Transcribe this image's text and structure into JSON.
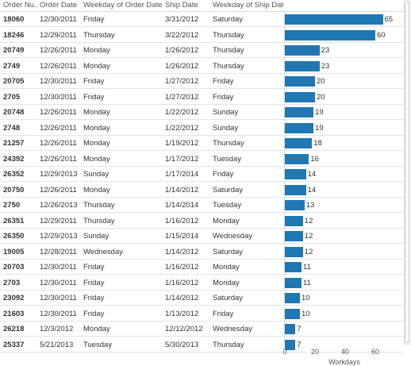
{
  "table": {
    "columns": [
      "Order Nu..",
      "Order Date",
      "Weekday of Order Date",
      "Ship Date",
      "Weekday of Ship Date"
    ]
  },
  "colors": {
    "bar": "#1f77b4"
  },
  "chart_data": {
    "type": "bar",
    "orientation": "horizontal",
    "xlabel": "Workdays",
    "xlim": [
      0,
      65
    ],
    "xticks": [
      0,
      20,
      40,
      60
    ],
    "rows": [
      {
        "order": "18060",
        "order_date": "12/30/2011",
        "order_wd": "Friday",
        "ship_date": "3/31/2012",
        "ship_wd": "Saturday",
        "value": 65
      },
      {
        "order": "18246",
        "order_date": "12/29/2011",
        "order_wd": "Thursday",
        "ship_date": "3/22/2012",
        "ship_wd": "Thursday",
        "value": 60
      },
      {
        "order": "20749",
        "order_date": "12/26/2011",
        "order_wd": "Monday",
        "ship_date": "1/26/2012",
        "ship_wd": "Thursday",
        "value": 23
      },
      {
        "order": "2749",
        "order_date": "12/26/2011",
        "order_wd": "Monday",
        "ship_date": "1/26/2012",
        "ship_wd": "Thursday",
        "value": 23
      },
      {
        "order": "20705",
        "order_date": "12/30/2011",
        "order_wd": "Friday",
        "ship_date": "1/27/2012",
        "ship_wd": "Friday",
        "value": 20
      },
      {
        "order": "2705",
        "order_date": "12/30/2011",
        "order_wd": "Friday",
        "ship_date": "1/27/2012",
        "ship_wd": "Friday",
        "value": 20
      },
      {
        "order": "20748",
        "order_date": "12/26/2011",
        "order_wd": "Monday",
        "ship_date": "1/22/2012",
        "ship_wd": "Sunday",
        "value": 19
      },
      {
        "order": "2748",
        "order_date": "12/26/2011",
        "order_wd": "Monday",
        "ship_date": "1/22/2012",
        "ship_wd": "Sunday",
        "value": 19
      },
      {
        "order": "21257",
        "order_date": "12/26/2011",
        "order_wd": "Monday",
        "ship_date": "1/19/2012",
        "ship_wd": "Thursday",
        "value": 18
      },
      {
        "order": "24392",
        "order_date": "12/26/2011",
        "order_wd": "Monday",
        "ship_date": "1/17/2012",
        "ship_wd": "Tuesday",
        "value": 16
      },
      {
        "order": "26352",
        "order_date": "12/29/2013",
        "order_wd": "Sunday",
        "ship_date": "1/17/2014",
        "ship_wd": "Friday",
        "value": 14
      },
      {
        "order": "20750",
        "order_date": "12/26/2011",
        "order_wd": "Monday",
        "ship_date": "1/14/2012",
        "ship_wd": "Saturday",
        "value": 14
      },
      {
        "order": "2750",
        "order_date": "12/26/2013",
        "order_wd": "Thursday",
        "ship_date": "1/14/2014",
        "ship_wd": "Tuesday",
        "value": 13
      },
      {
        "order": "26351",
        "order_date": "12/29/2011",
        "order_wd": "Thursday",
        "ship_date": "1/16/2012",
        "ship_wd": "Monday",
        "value": 12
      },
      {
        "order": "26350",
        "order_date": "12/29/2013",
        "order_wd": "Sunday",
        "ship_date": "1/15/2014",
        "ship_wd": "Wednesday",
        "value": 12
      },
      {
        "order": "19005",
        "order_date": "12/28/2011",
        "order_wd": "Wednesday",
        "ship_date": "1/14/2012",
        "ship_wd": "Saturday",
        "value": 12
      },
      {
        "order": "20703",
        "order_date": "12/30/2011",
        "order_wd": "Friday",
        "ship_date": "1/16/2012",
        "ship_wd": "Monday",
        "value": 11
      },
      {
        "order": "2703",
        "order_date": "12/30/2011",
        "order_wd": "Friday",
        "ship_date": "1/16/2012",
        "ship_wd": "Monday",
        "value": 11
      },
      {
        "order": "23092",
        "order_date": "12/30/2011",
        "order_wd": "Friday",
        "ship_date": "1/14/2012",
        "ship_wd": "Saturday",
        "value": 10
      },
      {
        "order": "21603",
        "order_date": "12/30/2011",
        "order_wd": "Friday",
        "ship_date": "1/13/2012",
        "ship_wd": "Friday",
        "value": 10
      },
      {
        "order": "26218",
        "order_date": "12/3/2012",
        "order_wd": "Monday",
        "ship_date": "12/12/2012",
        "ship_wd": "Wednesday",
        "value": 7
      },
      {
        "order": "25337",
        "order_date": "5/21/2013",
        "order_wd": "Tuesday",
        "ship_date": "5/30/2013",
        "ship_wd": "Thursday",
        "value": 7
      }
    ]
  }
}
